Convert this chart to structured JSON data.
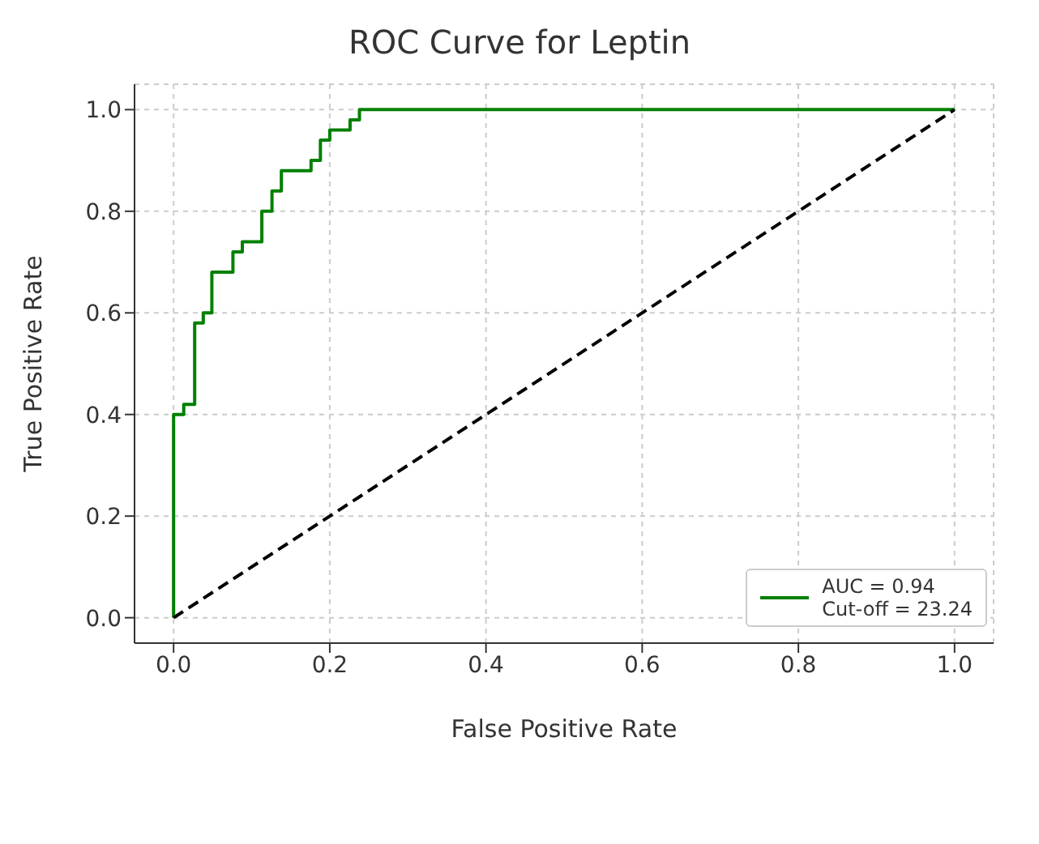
{
  "chart_data": {
    "type": "step",
    "title": "ROC Curve for Leptin",
    "xlabel": "False Positive Rate",
    "ylabel": "True Positive Rate",
    "series": [
      {
        "name": "AUC = 0.94\nCut-off = 23.24",
        "color": "#008000",
        "x": [
          0,
          0,
          0.013,
          0.027,
          0.038,
          0.049,
          0.076,
          0.088,
          0.113,
          0.126,
          0.138,
          0.176,
          0.188,
          0.2,
          0.226,
          0.238,
          1
        ],
        "values": [
          0,
          0.4,
          0.42,
          0.58,
          0.6,
          0.68,
          0.72,
          0.74,
          0.8,
          0.84,
          0.88,
          0.9,
          0.94,
          0.96,
          0.98,
          1,
          1
        ]
      },
      {
        "type": "line",
        "color": "#000000",
        "line_style": "dashed",
        "x": [
          0,
          1
        ],
        "values": [
          0,
          1
        ]
      }
    ],
    "xlim": [
      -0.05,
      1.05
    ],
    "ylim": [
      -0.05,
      1.05
    ],
    "xticks": [
      {
        "value": 0,
        "label": "0.0"
      },
      0.2,
      0.4,
      0.6,
      0.8,
      {
        "value": 1,
        "label": "1.0"
      }
    ],
    "yticks": [
      {
        "value": 0,
        "label": "0.0"
      },
      0.2,
      0.4,
      0.6,
      0.8,
      {
        "value": 1,
        "label": "1.0"
      }
    ],
    "grid": true,
    "legend": "bottom right",
    "marker": "none"
  }
}
